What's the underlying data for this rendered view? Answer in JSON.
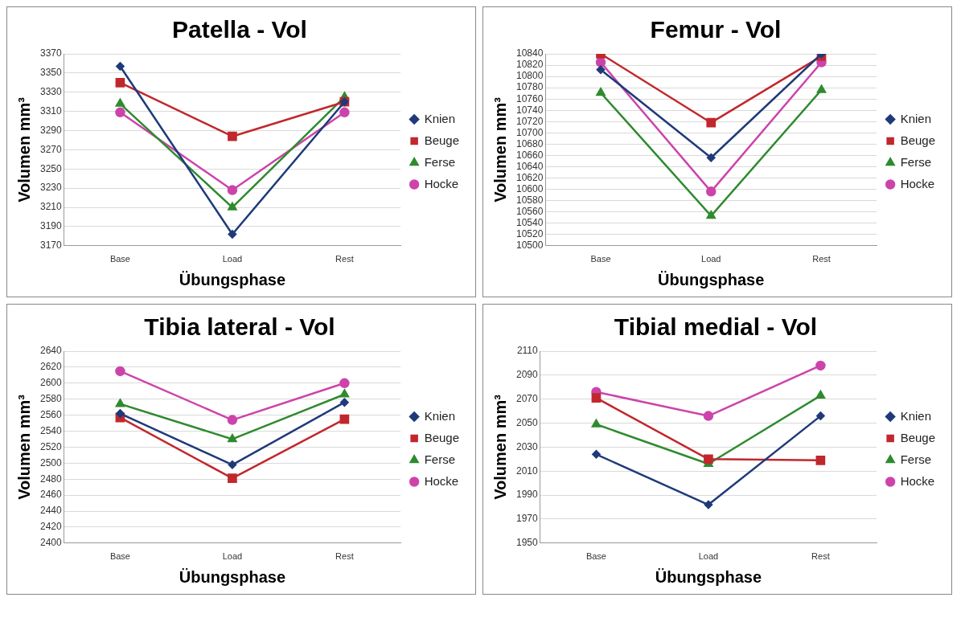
{
  "chart_data": [
    {
      "type": "line",
      "title": "Patella - Vol",
      "xlabel": "Übungsphase",
      "ylabel": "Volumen mm³",
      "categories": [
        "Base",
        "Load",
        "Rest"
      ],
      "ylim": [
        3170,
        3370
      ],
      "yticks": [
        3170,
        3190,
        3210,
        3230,
        3250,
        3270,
        3290,
        3310,
        3330,
        3350,
        3370
      ],
      "grid": "y",
      "legend": "right",
      "series": [
        {
          "name": "Knien",
          "color": "#1f3a7a",
          "marker": "diamond",
          "values": [
            3357,
            3182,
            3320
          ]
        },
        {
          "name": "Beuge",
          "color": "#c0282d",
          "marker": "square",
          "values": [
            3340,
            3284,
            3320
          ]
        },
        {
          "name": "Ferse",
          "color": "#2e8b2e",
          "marker": "triangle",
          "values": [
            3318,
            3210,
            3325
          ]
        },
        {
          "name": "Hocke",
          "color": "#cc44aa",
          "marker": "circle",
          "values": [
            3309,
            3228,
            3309
          ]
        }
      ]
    },
    {
      "type": "line",
      "title": "Femur - Vol",
      "xlabel": "Übungsphase",
      "ylabel": "Volumen mm³",
      "categories": [
        "Base",
        "Load",
        "Rest"
      ],
      "ylim": [
        10500,
        10840
      ],
      "yticks": [
        10500,
        10520,
        10540,
        10560,
        10580,
        10600,
        10620,
        10640,
        10660,
        10680,
        10700,
        10720,
        10740,
        10760,
        10780,
        10800,
        10820,
        10840
      ],
      "grid": "y",
      "legend": "right",
      "series": [
        {
          "name": "Knien",
          "color": "#1f3a7a",
          "marker": "diamond",
          "values": [
            10812,
            10656,
            10840
          ]
        },
        {
          "name": "Beuge",
          "color": "#c0282d",
          "marker": "square",
          "values": [
            10840,
            10718,
            10836
          ]
        },
        {
          "name": "Ferse",
          "color": "#2e8b2e",
          "marker": "triangle",
          "values": [
            10771,
            10553,
            10776
          ]
        },
        {
          "name": "Hocke",
          "color": "#cc44aa",
          "marker": "circle",
          "values": [
            10825,
            10596,
            10825
          ]
        }
      ]
    },
    {
      "type": "line",
      "title": "Tibia lateral - Vol",
      "xlabel": "Übungsphase",
      "ylabel": "Volumen mm³",
      "categories": [
        "Base",
        "Load",
        "Rest"
      ],
      "ylim": [
        2400,
        2640
      ],
      "yticks": [
        2400,
        2420,
        2440,
        2460,
        2480,
        2500,
        2520,
        2540,
        2560,
        2580,
        2600,
        2620,
        2640
      ],
      "grid": "y",
      "legend": "right",
      "series": [
        {
          "name": "Knien",
          "color": "#1f3a7a",
          "marker": "diamond",
          "values": [
            2562,
            2498,
            2576
          ]
        },
        {
          "name": "Beuge",
          "color": "#c0282d",
          "marker": "square",
          "values": [
            2557,
            2481,
            2555
          ]
        },
        {
          "name": "Ferse",
          "color": "#2e8b2e",
          "marker": "triangle",
          "values": [
            2574,
            2530,
            2586
          ]
        },
        {
          "name": "Hocke",
          "color": "#cc44aa",
          "marker": "circle",
          "values": [
            2615,
            2554,
            2600
          ]
        }
      ]
    },
    {
      "type": "line",
      "title": "Tibial medial - Vol",
      "xlabel": "Übungsphase",
      "ylabel": "Volumen mm³",
      "categories": [
        "Base",
        "Load",
        "Rest"
      ],
      "ylim": [
        1950,
        2110
      ],
      "yticks": [
        1950,
        1970,
        1990,
        2010,
        2030,
        2050,
        2070,
        2090,
        2110
      ],
      "grid": "y",
      "legend": "right",
      "series": [
        {
          "name": "Knien",
          "color": "#1f3a7a",
          "marker": "diamond",
          "values": [
            2024,
            1982,
            2056
          ]
        },
        {
          "name": "Beuge",
          "color": "#c0282d",
          "marker": "square",
          "values": [
            2071,
            2020,
            2019
          ]
        },
        {
          "name": "Ferse",
          "color": "#2e8b2e",
          "marker": "triangle",
          "values": [
            2049,
            2016,
            2073
          ]
        },
        {
          "name": "Hocke",
          "color": "#cc44aa",
          "marker": "circle",
          "values": [
            2076,
            2056,
            2098
          ]
        }
      ]
    }
  ]
}
